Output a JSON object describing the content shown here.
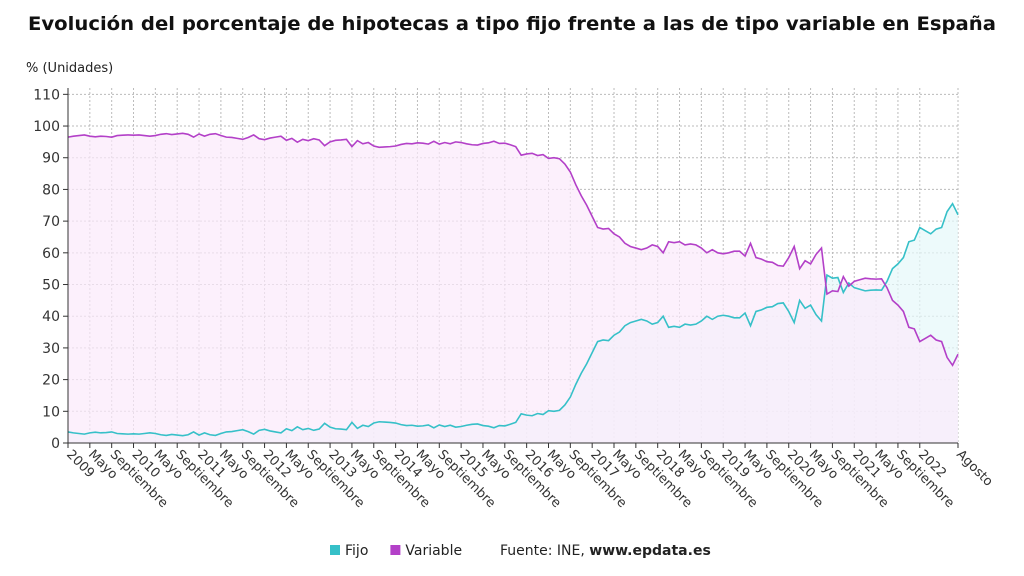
{
  "chart_data": {
    "type": "line",
    "title": "Evolución del porcentaje de hipotecas a tipo fijo frente a las de tipo variable en España",
    "y_label": "% (Unidades)",
    "source_label": "Fuente: INE,",
    "source_site": "www.epdata.es",
    "grid": true,
    "ylim": [
      0,
      112
    ],
    "yticks": [
      0,
      10,
      20,
      30,
      40,
      50,
      60,
      70,
      80,
      90,
      100,
      110
    ],
    "categories": [
      "2009",
      null,
      null,
      null,
      "Mayo",
      null,
      null,
      null,
      "Septiembre",
      null,
      null,
      null,
      "2010",
      null,
      null,
      null,
      "Mayo",
      null,
      null,
      null,
      "Septiembre",
      null,
      null,
      null,
      "2011",
      null,
      null,
      null,
      "Mayo",
      null,
      null,
      null,
      "Septiembre",
      null,
      null,
      null,
      "2012",
      null,
      null,
      null,
      "Mayo",
      null,
      null,
      null,
      "Septiembre",
      null,
      null,
      null,
      "2013",
      null,
      null,
      null,
      "Mayo",
      null,
      null,
      null,
      "Septiembre",
      null,
      null,
      null,
      "2014",
      null,
      null,
      null,
      "Mayo",
      null,
      null,
      null,
      "Septiembre",
      null,
      null,
      null,
      "2015",
      null,
      null,
      null,
      "Mayo",
      null,
      null,
      null,
      "Septiembre",
      null,
      null,
      null,
      "2016",
      null,
      null,
      null,
      "Mayo",
      null,
      null,
      null,
      "Septiembre",
      null,
      null,
      null,
      "2017",
      null,
      null,
      null,
      "Mayo",
      null,
      null,
      null,
      "Septiembre",
      null,
      null,
      null,
      "2018",
      null,
      null,
      null,
      "Mayo",
      null,
      null,
      null,
      "Septiembre",
      null,
      null,
      null,
      "2019",
      null,
      null,
      null,
      "Mayo",
      null,
      null,
      null,
      "Septiembre",
      null,
      null,
      null,
      "2020",
      null,
      null,
      null,
      "Mayo",
      null,
      null,
      null,
      "Septiembre",
      null,
      null,
      null,
      "2021",
      null,
      null,
      null,
      "Mayo",
      null,
      null,
      null,
      "Septiembre",
      null,
      null,
      null,
      "2022",
      null,
      null,
      null,
      null,
      null,
      null,
      "Agosto"
    ],
    "series": [
      {
        "name": "Fijo",
        "color": "#36c0c8",
        "fill": "#e6f8f9",
        "values": [
          3.5,
          3.2,
          3.0,
          2.8,
          3.2,
          3.4,
          3.2,
          3.3,
          3.5,
          3.0,
          2.9,
          2.8,
          2.9,
          2.8,
          3.0,
          3.2,
          3.0,
          2.6,
          2.4,
          2.7,
          2.5,
          2.3,
          2.6,
          3.5,
          2.5,
          3.2,
          2.6,
          2.4,
          3.0,
          3.5,
          3.6,
          3.9,
          4.2,
          3.6,
          2.8,
          4.0,
          4.3,
          3.8,
          3.5,
          3.2,
          4.5,
          3.9,
          5.1,
          4.2,
          4.6,
          4.0,
          4.4,
          6.2,
          5.0,
          4.5,
          4.4,
          4.2,
          6.5,
          4.6,
          5.6,
          5.2,
          6.3,
          6.7,
          6.6,
          6.5,
          6.3,
          5.8,
          5.5,
          5.6,
          5.3,
          5.4,
          5.7,
          4.8,
          5.7,
          5.2,
          5.6,
          5.0,
          5.2,
          5.6,
          5.9,
          6.0,
          5.5,
          5.3,
          4.8,
          5.5,
          5.4,
          5.9,
          6.5,
          9.2,
          8.8,
          8.6,
          9.3,
          9.0,
          10.2,
          10.0,
          10.3,
          12.0,
          14.5,
          18.5,
          22.0,
          25.0,
          28.5,
          32.0,
          32.5,
          32.3,
          34.0,
          35.0,
          37.0,
          38.0,
          38.5,
          39.0,
          38.5,
          37.5,
          38.0,
          40.0,
          36.5,
          36.8,
          36.5,
          37.5,
          37.2,
          37.5,
          38.5,
          40.0,
          39.0,
          40.0,
          40.3,
          40.0,
          39.5,
          39.5,
          41.0,
          37.0,
          41.5,
          42.0,
          42.8,
          43.0,
          44.0,
          44.2,
          41.5,
          38.0,
          45.0,
          42.5,
          43.5,
          40.5,
          38.5,
          53.0,
          52.0,
          52.2,
          47.5,
          50.5,
          49.0,
          48.5,
          48.0,
          48.2,
          48.3,
          48.2,
          51.0,
          55.0,
          56.5,
          58.5,
          63.5,
          64.0,
          68.0,
          67.0,
          66.0,
          67.5,
          68.0,
          73.0,
          75.5,
          72.0
        ]
      },
      {
        "name": "Variable",
        "color": "#b340c8",
        "fill": "#fbe9fb",
        "values": [
          96.5,
          96.8,
          97.0,
          97.2,
          96.8,
          96.6,
          96.8,
          96.7,
          96.5,
          97.0,
          97.1,
          97.2,
          97.1,
          97.2,
          97.0,
          96.8,
          97.0,
          97.4,
          97.6,
          97.3,
          97.5,
          97.7,
          97.4,
          96.5,
          97.5,
          96.8,
          97.4,
          97.6,
          97.0,
          96.5,
          96.4,
          96.1,
          95.8,
          96.4,
          97.2,
          96.0,
          95.7,
          96.2,
          96.5,
          96.8,
          95.5,
          96.1,
          94.9,
          95.8,
          95.4,
          96.0,
          95.6,
          93.8,
          95.0,
          95.5,
          95.6,
          95.8,
          93.5,
          95.4,
          94.4,
          94.8,
          93.7,
          93.3,
          93.4,
          93.5,
          93.7,
          94.2,
          94.5,
          94.4,
          94.7,
          94.6,
          94.3,
          95.2,
          94.3,
          94.8,
          94.4,
          95.0,
          94.8,
          94.4,
          94.1,
          94.0,
          94.5,
          94.7,
          95.2,
          94.5,
          94.6,
          94.1,
          93.5,
          90.8,
          91.2,
          91.4,
          90.7,
          91.0,
          89.8,
          90.0,
          89.7,
          88.0,
          85.5,
          81.5,
          78.0,
          75.0,
          71.5,
          68.0,
          67.5,
          67.7,
          66.0,
          65.0,
          63.0,
          62.0,
          61.5,
          61.0,
          61.5,
          62.5,
          62.0,
          60.0,
          63.5,
          63.2,
          63.5,
          62.5,
          62.8,
          62.5,
          61.5,
          60.0,
          61.0,
          60.0,
          59.7,
          60.0,
          60.5,
          60.5,
          59.0,
          63.0,
          58.5,
          58.0,
          57.2,
          57.0,
          56.0,
          55.8,
          58.5,
          62.0,
          55.0,
          57.5,
          56.5,
          59.5,
          61.5,
          47.0,
          48.0,
          47.8,
          52.5,
          49.5,
          51.0,
          51.5,
          52.0,
          51.8,
          51.7,
          51.8,
          49.0,
          45.0,
          43.5,
          41.5,
          36.5,
          36.0,
          32.0,
          33.0,
          34.0,
          32.5,
          32.0,
          27.0,
          24.5,
          28.0
        ]
      }
    ]
  }
}
